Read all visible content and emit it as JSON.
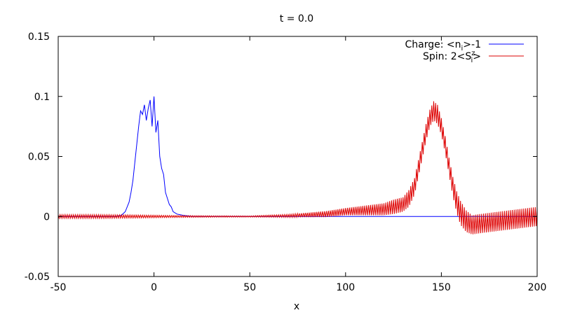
{
  "chart_data": {
    "type": "line",
    "title": "t = 0.0",
    "xlabel": "x",
    "ylabel": "",
    "xlim": [
      -50,
      200
    ],
    "ylim": [
      -0.05,
      0.15
    ],
    "x_ticks": [
      -50,
      0,
      50,
      100,
      150,
      200
    ],
    "y_ticks": [
      -0.05,
      0,
      0.05,
      0.1,
      0.15
    ],
    "x_tick_labels": [
      "-50",
      "0",
      "50",
      "100",
      "150",
      "200"
    ],
    "y_tick_labels": [
      "-0.05",
      "0",
      "0.05",
      "0.1",
      "0.15"
    ],
    "grid": false,
    "legend_position": "top-right",
    "legend": [
      {
        "prefix": "Charge: <n",
        "sub": "i",
        "sup": "",
        "suffix": ">-1",
        "color": "#0000ff"
      },
      {
        "prefix": "Spin: 2<S",
        "sub": "i",
        "sup": "z",
        "suffix": ">",
        "color": "#dd0000"
      }
    ],
    "series": [
      {
        "key": "charge",
        "color": "#0000ff",
        "x": [
          -50,
          -20,
          -17,
          -15,
          -13,
          -12,
          -11,
          -10,
          -9,
          -8,
          -7,
          -6,
          -5,
          -4,
          -3,
          -2,
          -1,
          0,
          1,
          2,
          3,
          4,
          5,
          6,
          7,
          8,
          9,
          10,
          12,
          15,
          20,
          50,
          100,
          150,
          200
        ],
        "y": [
          0,
          0,
          0.001,
          0.004,
          0.012,
          0.02,
          0.03,
          0.045,
          0.06,
          0.075,
          0.088,
          0.085,
          0.093,
          0.08,
          0.09,
          0.097,
          0.075,
          0.1,
          0.07,
          0.08,
          0.05,
          0.04,
          0.035,
          0.02,
          0.015,
          0.01,
          0.008,
          0.004,
          0.002,
          0.001,
          0,
          0,
          0,
          0,
          0
        ]
      },
      {
        "key": "spin",
        "color": "#dd0000",
        "x": [
          -50,
          -30,
          -10,
          10,
          30,
          50,
          70,
          90,
          100,
          110,
          120,
          125,
          130,
          133,
          136,
          138,
          140,
          142,
          144,
          146,
          148,
          150,
          152,
          154,
          156,
          158,
          160,
          163,
          166,
          170,
          180,
          190,
          200
        ],
        "y": [
          0,
          0,
          0,
          0,
          0,
          0,
          0.0005,
          0.002,
          0.004,
          0.005,
          0.006,
          0.008,
          0.01,
          0.015,
          0.025,
          0.04,
          0.055,
          0.07,
          0.082,
          0.088,
          0.085,
          0.075,
          0.06,
          0.042,
          0.025,
          0.012,
          0.003,
          -0.004,
          -0.007,
          -0.006,
          -0.004,
          -0.002,
          0
        ],
        "osc_amp": [
          0.0015,
          0.0015,
          0.0012,
          0.0008,
          0.0006,
          0.0005,
          0.0012,
          0.0025,
          0.003,
          0.004,
          0.005,
          0.006,
          0.006,
          0.007,
          0.007,
          0.007,
          0.007,
          0.007,
          0.007,
          0.008,
          0.008,
          0.007,
          0.007,
          0.007,
          0.008,
          0.009,
          0.01,
          0.009,
          0.008,
          0.008,
          0.008,
          0.008,
          0.008
        ]
      }
    ]
  }
}
